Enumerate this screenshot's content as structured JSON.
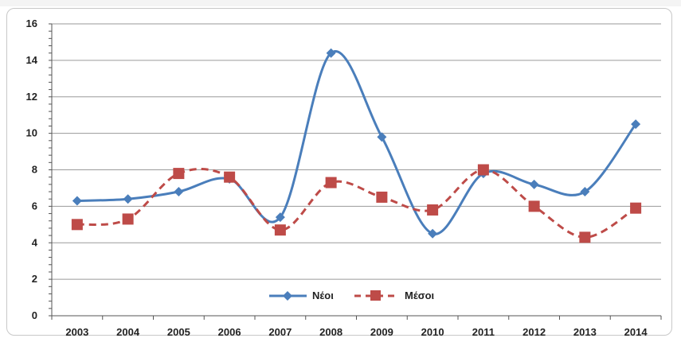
{
  "chart_data": {
    "type": "line",
    "title": "",
    "xlabel": "",
    "ylabel": "",
    "categories": [
      "2003",
      "2004",
      "2005",
      "2006",
      "2007",
      "2008",
      "2009",
      "2010",
      "2011",
      "2012",
      "2013",
      "2014"
    ],
    "ylim": [
      0,
      16
    ],
    "yticks": [
      "0",
      "2",
      "4",
      "6",
      "8",
      "10",
      "12",
      "14",
      "16"
    ],
    "grid": "horizontal",
    "legend_position": "bottom-center",
    "smooth": true,
    "series": [
      {
        "name": "Νέοι",
        "color": "#4a7ebb",
        "marker": "diamond",
        "line_style": "solid",
        "values": [
          6.3,
          6.4,
          6.8,
          7.5,
          5.4,
          14.4,
          9.8,
          4.5,
          7.8,
          7.2,
          6.8,
          10.5
        ]
      },
      {
        "name": "Μέσοι",
        "color": "#be4b48",
        "marker": "square",
        "line_style": "dashed",
        "values": [
          5.0,
          5.3,
          7.8,
          7.6,
          4.7,
          7.3,
          6.5,
          5.8,
          8.0,
          6.0,
          4.3,
          5.9
        ]
      }
    ]
  }
}
